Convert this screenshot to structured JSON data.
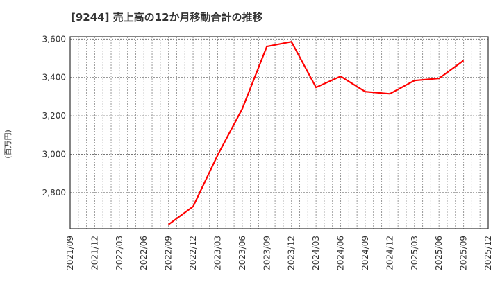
{
  "title": "[9244]  売上高の12か月移動合計の推移",
  "y_axis_label": "(百万円)",
  "colors": {
    "line": "#ff0000",
    "grid": "#999999",
    "axis": "#333333",
    "text": "#333333"
  },
  "chart_data": {
    "type": "line",
    "title": "[9244] 売上高の12か月移動合計の推移",
    "xlabel": "",
    "ylabel": "(百万円)",
    "ylim": [
      2612,
      3612
    ],
    "yticks": [
      2800,
      3000,
      3200,
      3400,
      3600
    ],
    "ytick_labels": [
      "2,800",
      "3,000",
      "3,200",
      "3,400",
      "3,600"
    ],
    "xticks": [
      "2021/09",
      "2021/12",
      "2022/03",
      "2022/06",
      "2022/09",
      "2022/12",
      "2023/03",
      "2023/06",
      "2023/09",
      "2023/12",
      "2024/03",
      "2024/06",
      "2024/09",
      "2024/12",
      "2025/03",
      "2025/06",
      "2025/09",
      "2025/12"
    ],
    "grid": true,
    "legend": null,
    "series": [
      {
        "name": "売上高の12か月移動合計",
        "x": [
          "2022/09",
          "2022/12",
          "2023/03",
          "2023/06",
          "2023/09",
          "2023/12",
          "2024/03",
          "2024/06",
          "2024/09",
          "2024/12",
          "2025/03",
          "2025/06",
          "2025/09"
        ],
        "values": [
          2634,
          2728,
          2996,
          3237,
          3561,
          3586,
          3348,
          3406,
          3326,
          3315,
          3384,
          3395,
          3488
        ]
      }
    ]
  }
}
